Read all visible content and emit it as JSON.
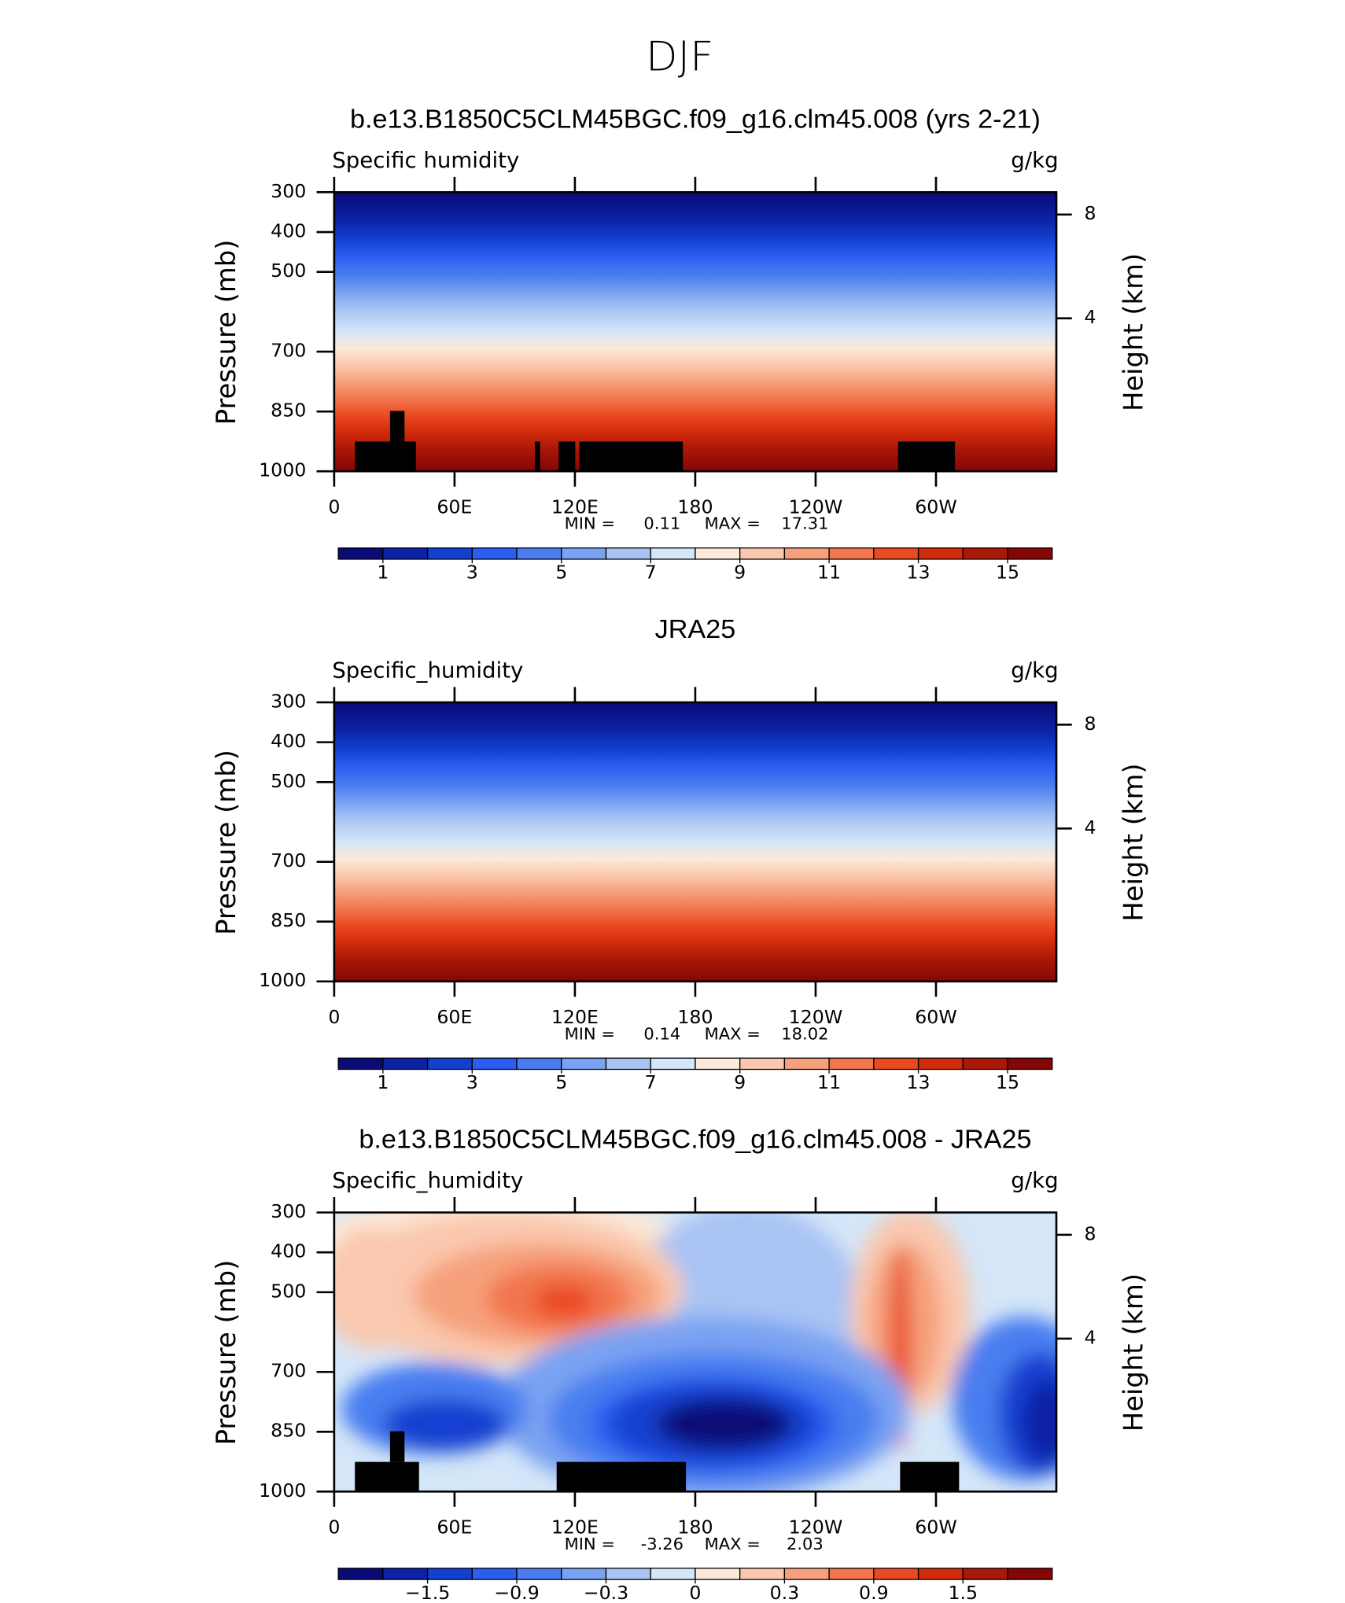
{
  "figure": {
    "title": "DJF"
  },
  "chart_data": [
    {
      "type": "contour",
      "title": "b.e13.B1850C5CLM45BGC.f09_g16.clm45.008 (yrs 2-21)",
      "variable": "Specific humidity",
      "units": "g/kg",
      "ylabel": "Pressure (mb)",
      "y2label": "Height (km)",
      "xlim": [
        0,
        360
      ],
      "xticks": [
        0,
        {
          "value": 60,
          "label": "60E"
        },
        {
          "value": 120,
          "label": "120E"
        },
        180,
        {
          "value": 240,
          "label": "120W"
        },
        {
          "value": 300,
          "label": "60W"
        }
      ],
      "ylim": [
        1000,
        300
      ],
      "yticks": [
        300,
        400,
        500,
        700,
        850,
        1000
      ],
      "y2ticks": [
        8,
        4
      ],
      "min_label": "MIN =",
      "min": 0.11,
      "max_label": "MAX =",
      "max": 17.31,
      "colorbar": {
        "levels": [
          1,
          2,
          3,
          4,
          5,
          6,
          7,
          8,
          9,
          10,
          11,
          12,
          13,
          14,
          15
        ],
        "ticks": [
          1,
          3,
          5,
          7,
          9,
          11,
          13,
          15
        ],
        "colors": [
          "#0a0a78",
          "#0c23a6",
          "#1240d0",
          "#2b5ef0",
          "#4a7ef0",
          "#7aa2f2",
          "#a9c4f4",
          "#d4e6f8",
          "#fce9d8",
          "#fac8ae",
          "#f6a07c",
          "#f2764e",
          "#ea4a22",
          "#d22b0c",
          "#aa1808",
          "#840606"
        ]
      }
    },
    {
      "type": "contour",
      "title": "JRA25",
      "variable": "Specific_humidity",
      "units": "g/kg",
      "ylabel": "Pressure (mb)",
      "y2label": "Height (km)",
      "xlim": [
        0,
        360
      ],
      "xticks": [
        0,
        {
          "value": 60,
          "label": "60E"
        },
        {
          "value": 120,
          "label": "120E"
        },
        180,
        {
          "value": 240,
          "label": "120W"
        },
        {
          "value": 300,
          "label": "60W"
        }
      ],
      "ylim": [
        1000,
        300
      ],
      "yticks": [
        300,
        400,
        500,
        700,
        850,
        1000
      ],
      "y2ticks": [
        8,
        4
      ],
      "min_label": "MIN =",
      "min": 0.14,
      "max_label": "MAX =",
      "max": 18.02,
      "colorbar": {
        "levels": [
          1,
          2,
          3,
          4,
          5,
          6,
          7,
          8,
          9,
          10,
          11,
          12,
          13,
          14,
          15
        ],
        "ticks": [
          1,
          3,
          5,
          7,
          9,
          11,
          13,
          15
        ],
        "colors": [
          "#0a0a78",
          "#0c23a6",
          "#1240d0",
          "#2b5ef0",
          "#4a7ef0",
          "#7aa2f2",
          "#a9c4f4",
          "#d4e6f8",
          "#fce9d8",
          "#fac8ae",
          "#f6a07c",
          "#f2764e",
          "#ea4a22",
          "#d22b0c",
          "#aa1808",
          "#840606"
        ]
      }
    },
    {
      "type": "contour-diff",
      "title": "b.e13.B1850C5CLM45BGC.f09_g16.clm45.008 - JRA25",
      "variable": "Specific_humidity",
      "units": "g/kg",
      "ylabel": "Pressure (mb)",
      "y2label": "Height (km)",
      "xlim": [
        0,
        360
      ],
      "xticks": [
        0,
        {
          "value": 60,
          "label": "60E"
        },
        {
          "value": 120,
          "label": "120E"
        },
        180,
        {
          "value": 240,
          "label": "120W"
        },
        {
          "value": 300,
          "label": "60W"
        }
      ],
      "ylim": [
        1000,
        300
      ],
      "yticks": [
        300,
        400,
        500,
        700,
        850,
        1000
      ],
      "y2ticks": [
        8,
        4
      ],
      "min_label": "MIN =",
      "min": -3.26,
      "max_label": "MAX =",
      "max": 2.03,
      "colorbar": {
        "levels": [
          -1.8,
          -1.5,
          -1.2,
          -0.9,
          -0.6,
          -0.3,
          -0.1,
          0,
          0.1,
          0.3,
          0.6,
          0.9,
          1.2,
          1.5,
          1.8
        ],
        "ticks": [
          {
            "value": -1.5,
            "label": "−1.5"
          },
          {
            "value": -0.9,
            "label": "−0.9"
          },
          {
            "value": -0.3,
            "label": "−0.3"
          },
          0,
          0.3,
          0.9,
          1.5
        ],
        "colors": [
          "#0a0a78",
          "#0c23a6",
          "#1240d0",
          "#2b5ef0",
          "#4a7ef0",
          "#7aa2f2",
          "#a9c4f4",
          "#d4e6f8",
          "#fce9d8",
          "#fac8ae",
          "#f6a07c",
          "#f2764e",
          "#ea4a22",
          "#d22b0c",
          "#aa1808",
          "#840606"
        ]
      }
    }
  ]
}
